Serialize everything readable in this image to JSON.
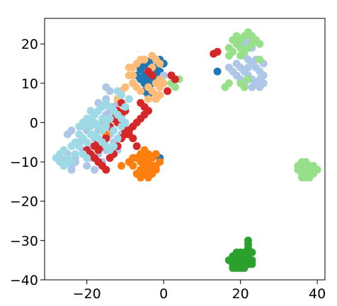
{
  "chart_data": {
    "type": "scatter",
    "title": "",
    "xlabel": "",
    "ylabel": "",
    "xlim": [
      -31,
      42
    ],
    "ylim": [
      -40,
      26.5
    ],
    "xticks": [
      -20,
      0,
      20,
      40
    ],
    "yticks": [
      20,
      10,
      0,
      -10,
      -20,
      -30,
      -40
    ],
    "xtick_labels": [
      "−20",
      "0",
      "20",
      "40"
    ],
    "ytick_labels": [
      "20",
      "10",
      "0",
      "−10",
      "−20",
      "−30",
      "−40"
    ],
    "grid": false,
    "legend": "none",
    "series": [
      {
        "color": "#1f77b4",
        "points": [
          [
            -5,
            16
          ],
          [
            -4,
            15.5
          ],
          [
            -3,
            16
          ],
          [
            -6,
            14
          ],
          [
            -5,
            12
          ],
          [
            -4,
            11
          ],
          [
            -2,
            12
          ],
          [
            -3,
            13
          ],
          [
            -6,
            11
          ],
          [
            -4,
            13
          ],
          [
            -7,
            12
          ],
          [
            -5,
            10
          ],
          [
            -4,
            9.5
          ],
          [
            -3,
            10
          ],
          [
            -2,
            14
          ],
          [
            -1,
            13
          ],
          [
            -1,
            16
          ],
          [
            -6,
            13.5
          ],
          [
            -5,
            14.5
          ],
          [
            -3,
            11
          ],
          [
            0,
            15
          ],
          [
            -8,
            10
          ],
          [
            -5,
            8
          ],
          [
            -4,
            7
          ],
          [
            14,
            13
          ],
          [
            -1,
            -9
          ]
        ]
      },
      {
        "color": "#aec7e8",
        "points": [
          [
            -27,
            -9
          ],
          [
            -26,
            -10
          ],
          [
            -25,
            -8
          ],
          [
            -24,
            -11
          ],
          [
            -23,
            -9
          ],
          [
            -25,
            -3
          ],
          [
            -24,
            -2
          ],
          [
            -22,
            -5
          ],
          [
            -21,
            -7
          ],
          [
            -20,
            -8
          ],
          [
            -19,
            -6
          ],
          [
            -18,
            -4
          ],
          [
            -17,
            -2
          ],
          [
            -16,
            0
          ],
          [
            -15,
            2
          ],
          [
            -14,
            3
          ],
          [
            -13,
            4
          ],
          [
            -12,
            5
          ],
          [
            -17,
            5
          ],
          [
            -16,
            4
          ],
          [
            -15,
            6
          ],
          [
            -14,
            8
          ],
          [
            -18,
            2
          ],
          [
            -19,
            0
          ],
          [
            -20,
            -2
          ],
          [
            -21,
            -4
          ],
          [
            -22,
            -6
          ],
          [
            -23,
            -10
          ],
          [
            -24,
            -12
          ],
          [
            -20,
            -11
          ],
          [
            -18,
            -12
          ],
          [
            -16,
            -10
          ],
          [
            -12,
            -7
          ],
          [
            -13,
            -5
          ],
          [
            -11,
            -3
          ],
          [
            -10,
            -1
          ],
          [
            -19,
            -9
          ],
          [
            -17,
            -8
          ],
          [
            -15,
            -7
          ],
          [
            -14,
            -3
          ],
          [
            -15,
            9
          ],
          [
            0,
            12
          ],
          [
            19,
            15
          ],
          [
            20,
            14
          ],
          [
            21,
            13
          ],
          [
            22,
            12
          ],
          [
            23,
            11
          ],
          [
            24,
            10
          ],
          [
            25,
            13
          ],
          [
            26,
            15
          ],
          [
            22,
            16
          ],
          [
            21,
            17
          ],
          [
            24,
            16
          ],
          [
            25,
            11
          ],
          [
            23,
            9
          ],
          [
            22,
            14
          ],
          [
            26,
            12
          ],
          [
            20,
            11
          ],
          [
            18,
            13
          ],
          [
            17,
            14
          ],
          [
            22,
            21
          ],
          [
            23,
            19
          ],
          [
            21,
            20
          ],
          [
            24,
            14
          ],
          [
            19,
            12
          ],
          [
            23,
            15
          ],
          [
            25,
            9
          ],
          [
            26,
            10
          ],
          [
            21,
            10
          ]
        ]
      },
      {
        "color": "#ff7f0e",
        "points": [
          [
            -6,
            -12
          ],
          [
            -5,
            -11
          ],
          [
            -4,
            -10
          ],
          [
            -3,
            -9
          ],
          [
            -2,
            -11
          ],
          [
            -7,
            -9
          ],
          [
            -6,
            -8
          ],
          [
            -5,
            -13
          ],
          [
            -4,
            -12
          ],
          [
            -3,
            -13
          ],
          [
            -8,
            -11
          ],
          [
            -7,
            -13
          ],
          [
            -2,
            -8
          ],
          [
            -1,
            -10
          ],
          [
            -6,
            -10
          ],
          [
            -5,
            -9
          ],
          [
            -4,
            -8
          ],
          [
            -3,
            -11
          ],
          [
            -2,
            -12
          ],
          [
            -8,
            -9
          ],
          [
            -9,
            -10
          ],
          [
            -5,
            -7
          ],
          [
            -4,
            -14
          ],
          [
            -6,
            -14
          ],
          [
            -11,
            -11
          ],
          [
            -17,
            -1
          ],
          [
            -16,
            -2
          ],
          [
            -15,
            -3
          ]
        ]
      },
      {
        "color": "#ffbb78",
        "points": [
          [
            -8,
            14
          ],
          [
            -7,
            15
          ],
          [
            -6,
            16
          ],
          [
            -3,
            17
          ],
          [
            -2,
            16
          ],
          [
            -1,
            15
          ],
          [
            -8,
            10
          ],
          [
            -7,
            9
          ],
          [
            -6,
            8
          ],
          [
            -4,
            9
          ],
          [
            -3,
            8
          ],
          [
            -2,
            7
          ],
          [
            -1,
            9
          ],
          [
            -2,
            10
          ],
          [
            -10,
            9
          ],
          [
            -11,
            8
          ],
          [
            -12,
            6
          ],
          [
            -1,
            11
          ],
          [
            -3,
            14
          ],
          [
            -5,
            16
          ],
          [
            -9,
            12
          ],
          [
            -4,
            6
          ],
          [
            -2,
            6
          ],
          [
            -13,
            3
          ],
          [
            -9,
            14
          ],
          [
            -8,
            12
          ],
          [
            -1,
            7
          ],
          [
            0,
            10
          ]
        ]
      },
      {
        "color": "#2ca02c",
        "points": [
          [
            18,
            -34
          ],
          [
            19,
            -35
          ],
          [
            20,
            -36
          ],
          [
            21,
            -35
          ],
          [
            22,
            -34
          ],
          [
            19,
            -33
          ],
          [
            20,
            -33
          ],
          [
            21,
            -37
          ],
          [
            22,
            -36
          ],
          [
            18,
            -36
          ],
          [
            19,
            -37
          ],
          [
            20,
            -34
          ],
          [
            21,
            -33
          ],
          [
            22,
            -32
          ],
          [
            23,
            -33
          ],
          [
            17,
            -35
          ],
          [
            18,
            -37
          ],
          [
            23,
            -35
          ],
          [
            22,
            -31
          ],
          [
            22,
            -30
          ],
          [
            20,
            -35
          ],
          [
            19,
            -36
          ],
          [
            21,
            -34
          ],
          [
            20,
            -37
          ],
          [
            18,
            -35
          ],
          [
            23,
            -36
          ]
        ]
      },
      {
        "color": "#98df8a",
        "points": [
          [
            17,
            19
          ],
          [
            18,
            18
          ],
          [
            19,
            20
          ],
          [
            20,
            21
          ],
          [
            21,
            22
          ],
          [
            22,
            23
          ],
          [
            23,
            22
          ],
          [
            24,
            21
          ],
          [
            25,
            20
          ],
          [
            19,
            22
          ],
          [
            20,
            19
          ],
          [
            21,
            18
          ],
          [
            18,
            21
          ],
          [
            17,
            17
          ],
          [
            22,
            11
          ],
          [
            21,
            9
          ],
          [
            20,
            10
          ],
          [
            16,
            9
          ],
          [
            17,
            10
          ],
          [
            25,
            16
          ],
          [
            23,
            20
          ],
          [
            22,
            19
          ],
          [
            20,
            17
          ],
          [
            36,
            -10
          ],
          [
            37,
            -11
          ],
          [
            38,
            -12
          ],
          [
            39,
            -13
          ],
          [
            36,
            -13
          ],
          [
            37,
            -14
          ],
          [
            38,
            -11
          ],
          [
            35,
            -12
          ],
          [
            36,
            -11
          ],
          [
            37,
            -12
          ],
          [
            38,
            -13
          ],
          [
            39,
            -11
          ],
          [
            35,
            -11
          ],
          [
            36,
            -14
          ],
          [
            38,
            -14
          ],
          [
            37,
            -10
          ],
          [
            40,
            -12
          ],
          [
            2,
            10
          ],
          [
            4,
            11
          ],
          [
            3,
            9
          ]
        ]
      },
      {
        "color": "#d62728",
        "points": [
          [
            -20,
            -7
          ],
          [
            -19,
            -8
          ],
          [
            -18,
            -9
          ],
          [
            -17,
            -10
          ],
          [
            -16,
            -11
          ],
          [
            -15,
            -12
          ],
          [
            -14,
            -9
          ],
          [
            -13,
            -8
          ],
          [
            -12,
            -6
          ],
          [
            -11,
            -4
          ],
          [
            -10,
            -3
          ],
          [
            -9,
            -2
          ],
          [
            -8,
            -1
          ],
          [
            -7,
            0
          ],
          [
            -6,
            1
          ],
          [
            -5,
            2
          ],
          [
            -12,
            0
          ],
          [
            -11,
            2
          ],
          [
            -10,
            3
          ],
          [
            -13,
            1
          ],
          [
            -14,
            -1
          ],
          [
            -15,
            -4
          ],
          [
            -16,
            -6
          ],
          [
            -17,
            -7
          ],
          [
            -6,
            5
          ],
          [
            -5,
            4
          ],
          [
            -4,
            3
          ],
          [
            -8,
            -4
          ],
          [
            -9,
            -3
          ],
          [
            -7,
            -6
          ],
          [
            -4,
            13
          ],
          [
            -3,
            12
          ],
          [
            2,
            12
          ],
          [
            3,
            11
          ],
          [
            1,
            8
          ],
          [
            14,
            18
          ],
          [
            13,
            17.5
          ],
          [
            -11,
            5
          ],
          [
            -12,
            3
          ],
          [
            -10,
            -2
          ],
          [
            -18,
            -6
          ],
          [
            -17,
            -5
          ]
        ]
      },
      {
        "color": "#9edae5",
        "points": [
          [
            -28,
            -9
          ],
          [
            -27,
            -8
          ],
          [
            -26,
            -7
          ],
          [
            -25,
            -10
          ],
          [
            -24,
            -6
          ],
          [
            -23,
            -5
          ],
          [
            -22,
            -3
          ],
          [
            -21,
            -1
          ],
          [
            -20,
            0
          ],
          [
            -19,
            1
          ],
          [
            -18,
            2
          ],
          [
            -17,
            3
          ],
          [
            -16,
            4
          ],
          [
            -15,
            5
          ],
          [
            -14,
            4
          ],
          [
            -13,
            3
          ],
          [
            -12,
            2
          ],
          [
            -11,
            1
          ],
          [
            -10,
            4
          ],
          [
            -9,
            6
          ],
          [
            -11,
            7
          ],
          [
            -12,
            8
          ],
          [
            -20,
            1
          ],
          [
            -19,
            -1
          ],
          [
            -18,
            -3
          ],
          [
            -17,
            -4
          ],
          [
            -16,
            -5
          ],
          [
            -15,
            -6
          ],
          [
            -14,
            -7
          ],
          [
            -13,
            -6
          ],
          [
            -21,
            -4
          ],
          [
            -22,
            -6
          ],
          [
            -23,
            -8
          ],
          [
            -24,
            -10
          ],
          [
            -25,
            -9
          ],
          [
            -26,
            -11
          ],
          [
            -27,
            -10
          ],
          [
            -20,
            -5
          ],
          [
            -19,
            -3
          ],
          [
            -18,
            0
          ],
          [
            -16,
            1
          ],
          [
            -15,
            0
          ],
          [
            -14,
            1
          ],
          [
            -13,
            -2
          ],
          [
            -12,
            -4
          ],
          [
            -11,
            -1
          ],
          [
            -10,
            0
          ],
          [
            -22,
            -1
          ],
          [
            -21,
            0
          ],
          [
            -17,
            -1
          ],
          [
            -16,
            -2
          ],
          [
            -15,
            -1
          ],
          [
            -19,
            3
          ],
          [
            -20,
            -9
          ],
          [
            -21,
            -8
          ]
        ]
      }
    ]
  }
}
